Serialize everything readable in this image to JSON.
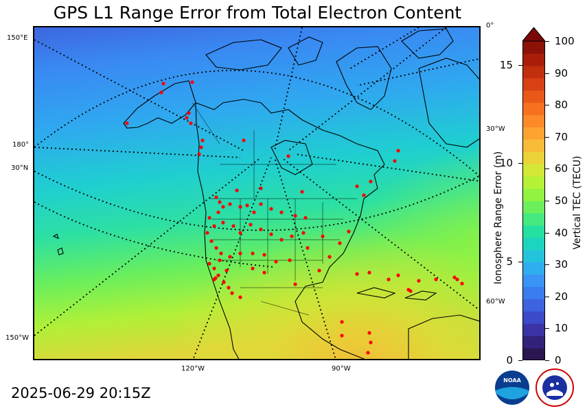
{
  "title": "GPS L1 Range Error from Total Electron Content",
  "timestamp": "2025-06-29 20:15Z",
  "map": {
    "lon_labels_bottom": [
      "120°W",
      "90°W"
    ],
    "left_labels": [
      "150°E",
      "180°",
      "30°N",
      "150°W"
    ],
    "right_labels": [
      "0°",
      "30°W",
      "60°W"
    ],
    "station_color": "#ff0000"
  },
  "colorbar": {
    "tec_label": "Vertical TEC (TECU)",
    "range_label": "Ionosphere Range Error (m)",
    "tec_ticks": [
      "0",
      "10",
      "20",
      "30",
      "40",
      "50",
      "60",
      "70",
      "80",
      "90",
      "100"
    ],
    "range_ticks": [
      "0",
      "5",
      "10",
      "15"
    ],
    "colors": [
      "#2b1650",
      "#33227a",
      "#3a34a6",
      "#3c4bc9",
      "#3d63de",
      "#3b7cef",
      "#3994f6",
      "#2fadef",
      "#24c3dc",
      "#1dd5bf",
      "#25e0a0",
      "#45e97f",
      "#6cef5a",
      "#92f440",
      "#b5f237",
      "#d3e836",
      "#ead339",
      "#f8bb38",
      "#fea331",
      "#fe8928",
      "#f7701f",
      "#ea5819",
      "#d84113",
      "#c22f0e",
      "#a81e09",
      "#8c1208",
      "#7a0807"
    ]
  },
  "logos": {
    "noaa_text": "NOAA",
    "nws_text": "NATIONAL WEATHER SERVICE"
  }
}
